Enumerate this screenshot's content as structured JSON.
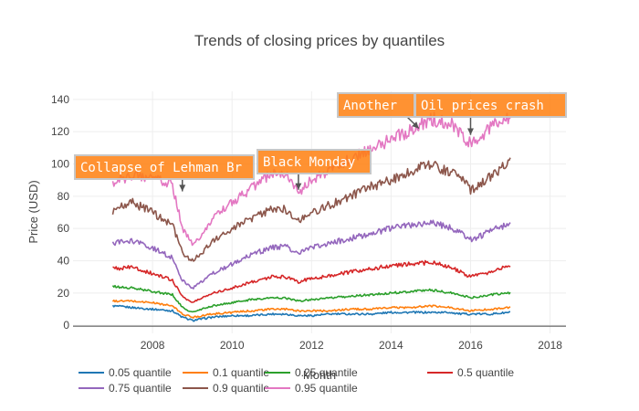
{
  "chart_data": {
    "type": "line",
    "title": "Trends of closing prices by quantiles",
    "xlabel": "Month",
    "ylabel": "Price (USD)",
    "xlim": [
      2006.0,
      2018.4
    ],
    "ylim": [
      -5,
      145
    ],
    "x_ticks": [
      2008,
      2010,
      2012,
      2014,
      2016,
      2018
    ],
    "y_ticks": [
      0,
      20,
      40,
      60,
      80,
      100,
      120,
      140
    ],
    "grid": true,
    "legend_position": "bottom",
    "x": [
      2007.0,
      2007.5,
      2008.0,
      2008.5,
      2008.75,
      2009.0,
      2009.25,
      2009.5,
      2010.0,
      2010.5,
      2011.0,
      2011.33,
      2011.67,
      2012.0,
      2012.5,
      2013.0,
      2013.5,
      2014.0,
      2014.5,
      2015.0,
      2015.5,
      2015.75,
      2016.0,
      2016.5,
      2017.0
    ],
    "series": [
      {
        "name": "0.05 quantile",
        "color": "#1f77b4",
        "values": [
          12,
          11,
          10,
          9,
          5,
          3,
          4,
          5,
          6,
          6,
          7,
          7,
          6,
          6,
          7,
          7,
          7,
          8,
          8,
          8,
          8,
          7,
          7,
          7,
          8
        ]
      },
      {
        "name": "0.1 quantile",
        "color": "#ff7f0e",
        "values": [
          15,
          15,
          14,
          12,
          7,
          5,
          6,
          7,
          8,
          9,
          10,
          10,
          9,
          9,
          9,
          10,
          10,
          11,
          11,
          12,
          11,
          10,
          9,
          10,
          11
        ]
      },
      {
        "name": "0.25 quantile",
        "color": "#2ca02c",
        "values": [
          24,
          23,
          21,
          19,
          11,
          8,
          10,
          12,
          14,
          16,
          17,
          17,
          15,
          16,
          17,
          18,
          19,
          20,
          21,
          22,
          20,
          19,
          17,
          19,
          20
        ]
      },
      {
        "name": "0.5 quantile",
        "color": "#d62728",
        "values": [
          35,
          36,
          32,
          28,
          18,
          14,
          17,
          20,
          23,
          27,
          30,
          30,
          27,
          29,
          31,
          33,
          35,
          37,
          38,
          39,
          36,
          33,
          30,
          33,
          37
        ]
      },
      {
        "name": "0.75 quantile",
        "color": "#9467bd",
        "values": [
          51,
          52,
          48,
          42,
          28,
          23,
          27,
          32,
          38,
          44,
          48,
          49,
          45,
          48,
          51,
          54,
          57,
          60,
          62,
          64,
          60,
          57,
          53,
          58,
          64
        ]
      },
      {
        "name": "0.9 quantile",
        "color": "#8c564b",
        "values": [
          71,
          76,
          70,
          62,
          45,
          40,
          45,
          52,
          60,
          66,
          72,
          72,
          65,
          70,
          75,
          80,
          86,
          90,
          96,
          100,
          95,
          92,
          84,
          92,
          102
        ]
      },
      {
        "name": "0.95 quantile",
        "color": "#e377c2",
        "values": [
          88,
          93,
          92,
          87,
          60,
          50,
          57,
          66,
          76,
          85,
          94,
          94,
          82,
          90,
          97,
          103,
          110,
          115,
          121,
          128,
          125,
          120,
          112,
          122,
          130
        ]
      }
    ],
    "annotations": [
      {
        "text": "Collapse of Lehman Brothers",
        "visible_text": "Collapse of Lehman Br",
        "x": 2008.75,
        "y": 83
      },
      {
        "text": "Black Monday",
        "visible_text": "Black Monday",
        "x": 2011.67,
        "y": 84
      },
      {
        "text": "Another",
        "visible_text": "Another",
        "x": 2014.7,
        "y": 122
      },
      {
        "text": "Oil prices crash",
        "visible_text": "Oil prices crash",
        "x": 2016.0,
        "y": 118
      }
    ]
  }
}
